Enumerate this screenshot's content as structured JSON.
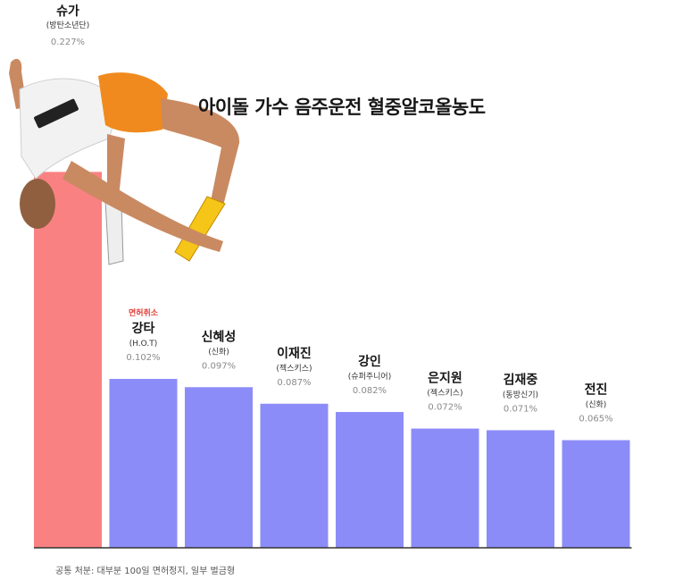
{
  "chart_data": {
    "type": "bar",
    "title": "아이돌 가수 음주운전 혈중알코올농도",
    "categories": [
      "슈가",
      "강타",
      "신혜성",
      "이재진",
      "강인",
      "은지원",
      "김재중",
      "전진"
    ],
    "groups": [
      "(방탄소년단)",
      "(H.O.T)",
      "(신화)",
      "(젝스키스)",
      "(슈퍼주니어)",
      "(젝스키스)",
      "(동방신기)",
      "(신화)"
    ],
    "values": [
      0.227,
      0.102,
      0.097,
      0.087,
      0.082,
      0.072,
      0.071,
      0.065
    ],
    "value_labels": [
      "0.227%",
      "0.102%",
      "0.097%",
      "0.087%",
      "0.082%",
      "0.072%",
      "0.071%",
      "0.065%"
    ],
    "tags": [
      "",
      "면허취소",
      "",
      "",
      "",
      "",
      "",
      ""
    ],
    "xlabel": "",
    "ylabel": "",
    "grid": false,
    "legend": "none",
    "highlight_color": "#f98182",
    "bar_color": "#8c8cf9",
    "tag_color": "#e0403a",
    "axis_color": "#333333"
  },
  "footnote": "공통 처분: 대부분 100일 면허정지, 일부 벌금형"
}
